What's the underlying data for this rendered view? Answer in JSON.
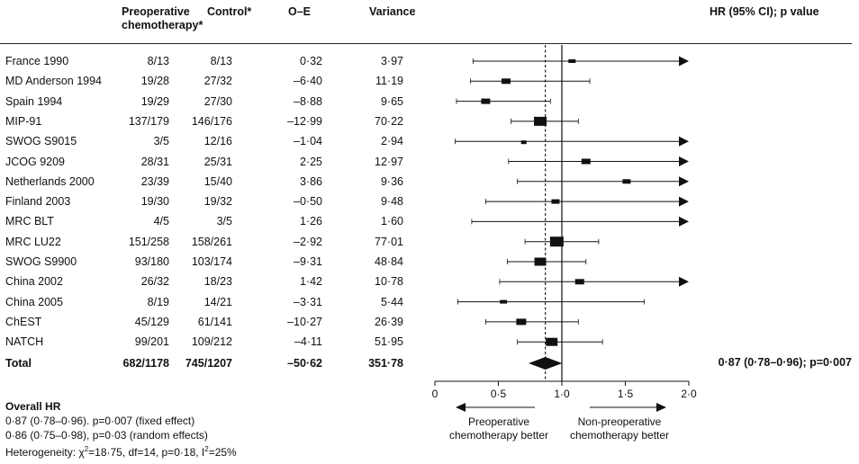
{
  "header": {
    "col_pre": "Preoperative chemotherapy*",
    "col_pre_line1": "Preoperative",
    "col_pre_line2": "chemotherapy*",
    "col_ctl": "Control*",
    "col_oe": "O–E",
    "col_var": "Variance",
    "col_hr": "HR (95% CI); p value"
  },
  "chart_data": {
    "type": "forest",
    "x_axis": {
      "xlim": [
        0,
        2.0
      ],
      "ticks": [
        0,
        0.5,
        1.0,
        1.5,
        2.0
      ],
      "tick_labels": [
        "0",
        "0·5",
        "1·0",
        "1·5",
        "2·0"
      ],
      "reference_line": 1.0,
      "pooled_line": 0.87
    },
    "direction_labels": {
      "left": "Preoperative chemotherapy better",
      "right": "Non-preoperative chemotherapy better"
    },
    "studies": [
      {
        "name": "France 1990",
        "pre": "8/13",
        "ctl": "8/13",
        "oe": "0·32",
        "var": "3·97",
        "hr": 1.08,
        "lo": 0.3,
        "hi": 2.0,
        "arrow_right": true,
        "w": 6
      },
      {
        "name": "MD Anderson 1994",
        "pre": "19/28",
        "ctl": "27/32",
        "oe": "–6·40",
        "var": "11·19",
        "hr": 0.56,
        "lo": 0.28,
        "hi": 1.22,
        "arrow_right": false,
        "w": 8
      },
      {
        "name": "Spain 1994",
        "pre": "19/29",
        "ctl": "27/30",
        "oe": "–8·88",
        "var": "9·65",
        "hr": 0.4,
        "lo": 0.17,
        "hi": 0.91,
        "arrow_right": false,
        "w": 8
      },
      {
        "name": "MIP-91",
        "pre": "137/179",
        "ctl": "146/176",
        "oe": "–12·99",
        "var": "70·22",
        "hr": 0.83,
        "lo": 0.6,
        "hi": 1.13,
        "arrow_right": false,
        "w": 12
      },
      {
        "name": "SWOG S9015",
        "pre": "3/5",
        "ctl": "12/16",
        "oe": "–1·04",
        "var": "2·94",
        "hr": 0.7,
        "lo": 0.16,
        "hi": 2.0,
        "arrow_right": true,
        "w": 4
      },
      {
        "name": "JCOG 9209",
        "pre": "28/31",
        "ctl": "25/31",
        "oe": "2·25",
        "var": "12·97",
        "hr": 1.19,
        "lo": 0.58,
        "hi": 2.0,
        "arrow_right": true,
        "w": 8
      },
      {
        "name": "Netherlands 2000",
        "pre": "23/39",
        "ctl": "15/40",
        "oe": "3·86",
        "var": "9·36",
        "hr": 1.51,
        "lo": 0.65,
        "hi": 2.0,
        "arrow_right": true,
        "w": 7
      },
      {
        "name": "Finland 2003",
        "pre": "19/30",
        "ctl": "19/32",
        "oe": "–0·50",
        "var": "9·48",
        "hr": 0.95,
        "lo": 0.4,
        "hi": 2.0,
        "arrow_right": true,
        "w": 7
      },
      {
        "name": "MRC BLT",
        "pre": "4/5",
        "ctl": "3/5",
        "oe": "1·26",
        "var": "1·60",
        "hr": 2.2,
        "lo": 0.29,
        "hi": 2.0,
        "arrow_right": true,
        "w": 0
      },
      {
        "name": "MRC LU22",
        "pre": "151/258",
        "ctl": "158/261",
        "oe": "–2·92",
        "var": "77·01",
        "hr": 0.96,
        "lo": 0.71,
        "hi": 1.29,
        "arrow_right": false,
        "w": 13
      },
      {
        "name": "SWOG S9900",
        "pre": "93/180",
        "ctl": "103/174",
        "oe": "–9·31",
        "var": "48·84",
        "hr": 0.83,
        "lo": 0.57,
        "hi": 1.19,
        "arrow_right": false,
        "w": 11
      },
      {
        "name": "China 2002",
        "pre": "26/32",
        "ctl": "18/23",
        "oe": "1·42",
        "var": "10·78",
        "hr": 1.14,
        "lo": 0.51,
        "hi": 2.0,
        "arrow_right": true,
        "w": 8
      },
      {
        "name": "China 2005",
        "pre": "8/19",
        "ctl": "14/21",
        "oe": "–3·31",
        "var": "5·44",
        "hr": 0.54,
        "lo": 0.18,
        "hi": 1.65,
        "arrow_right": false,
        "w": 6
      },
      {
        "name": "ChEST",
        "pre": "45/129",
        "ctl": "61/141",
        "oe": "–10·27",
        "var": "26·39",
        "hr": 0.68,
        "lo": 0.4,
        "hi": 1.13,
        "arrow_right": false,
        "w": 9
      },
      {
        "name": "NATCH",
        "pre": "99/201",
        "ctl": "109/212",
        "oe": "–4·11",
        "var": "51·95",
        "hr": 0.92,
        "lo": 0.65,
        "hi": 1.32,
        "arrow_right": false,
        "w": 11
      }
    ],
    "total": {
      "name": "Total",
      "pre": "682/1178",
      "ctl": "745/1207",
      "oe": "–50·62",
      "var": "351·78",
      "hr": 0.87,
      "lo": 0.78,
      "hi": 0.96,
      "hr_text": "0·87 (0·78–0·96); p=0·007"
    }
  },
  "summary": {
    "title": "Overall HR",
    "fixed": "0·87 (0·78–0·96). p=0·007 (fixed effect)",
    "random": "0·86 (0·75–0·98), p=0·03 (random effects)",
    "heterogeneity_prefix": "Heterogeneity: χ",
    "heterogeneity_sup": "2",
    "heterogeneity_suffix": "=18·75, df=14, p=0·18, I",
    "heterogeneity_sup2": "2",
    "heterogeneity_end": "=25%"
  }
}
